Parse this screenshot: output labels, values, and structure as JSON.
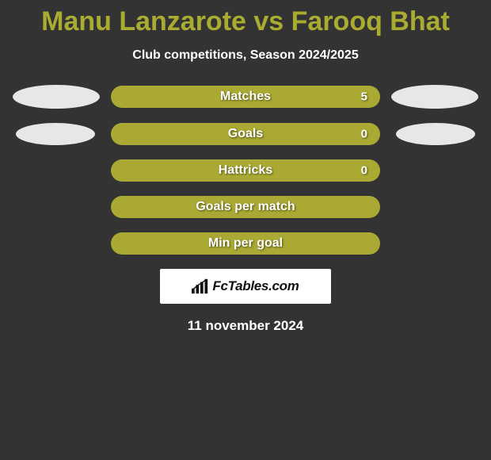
{
  "title_color": "#aaac32",
  "title": "Manu Lanzarote vs Farooq Bhat",
  "subtitle": "Club competitions, Season 2024/2025",
  "oval_color": "#e7e7e7",
  "rows": [
    {
      "label": "Matches",
      "value": "5",
      "fill": "#a9a933",
      "left_oval": true,
      "right_oval": true,
      "big_oval": true
    },
    {
      "label": "Goals",
      "value": "0",
      "fill": "#a9a933",
      "left_oval": true,
      "right_oval": true,
      "big_oval": false
    },
    {
      "label": "Hattricks",
      "value": "0",
      "fill": "#a9a933",
      "left_oval": false,
      "right_oval": false,
      "big_oval": false
    },
    {
      "label": "Goals per match",
      "value": "",
      "fill": "#a9a933",
      "left_oval": false,
      "right_oval": false,
      "big_oval": false
    },
    {
      "label": "Min per goal",
      "value": "",
      "fill": "#a9a933",
      "left_oval": false,
      "right_oval": false,
      "big_oval": false
    }
  ],
  "logo_text": "FcTables.com",
  "date": "11 november 2024",
  "background": "#333333"
}
